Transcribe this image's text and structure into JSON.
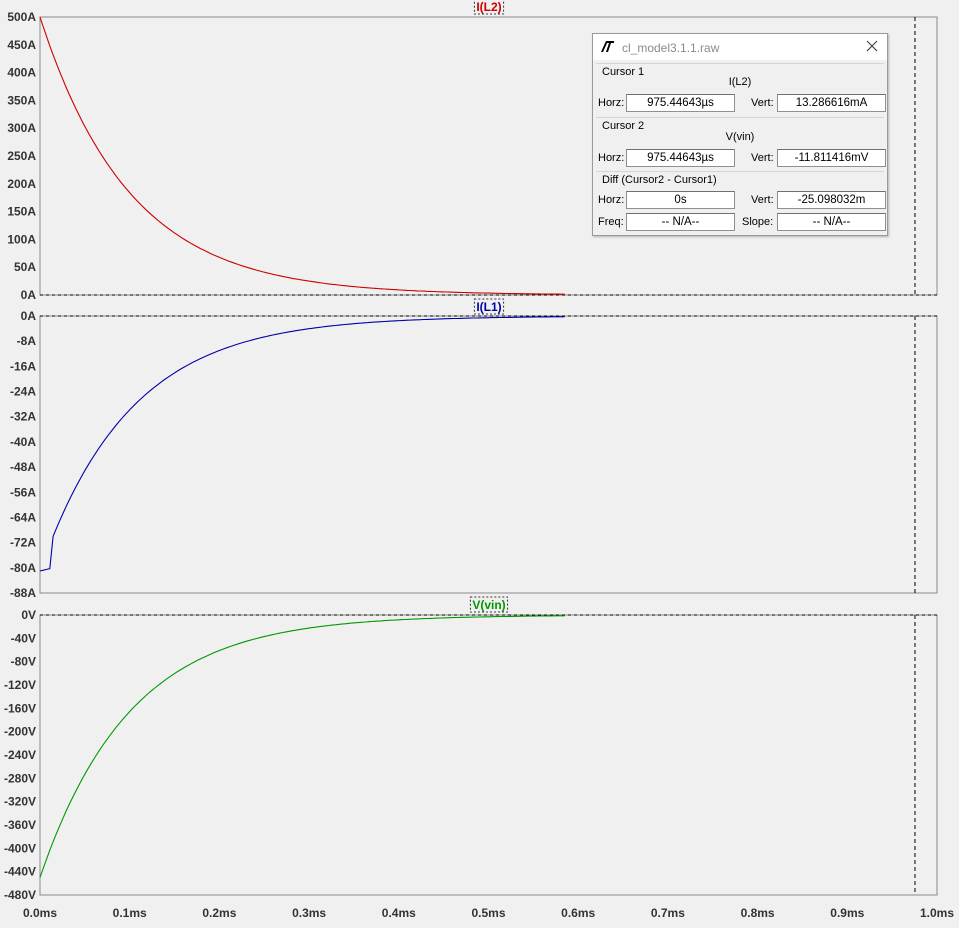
{
  "panes": [
    {
      "trace": "I(L2)",
      "color": "#cc0000",
      "y_ticks": [
        "500A",
        "450A",
        "400A",
        "350A",
        "300A",
        "250A",
        "200A",
        "150A",
        "100A",
        "50A",
        "0A"
      ],
      "y_range": [
        0,
        500
      ],
      "curve": {
        "start": 500,
        "end": 0.0,
        "tau_ms": 0.1
      }
    },
    {
      "trace": "I(L1)",
      "color": "#0000aa",
      "y_ticks": [
        "0A",
        "-8A",
        "-16A",
        "-24A",
        "-32A",
        "-40A",
        "-48A",
        "-56A",
        "-64A",
        "-72A",
        "-80A",
        "-88A"
      ],
      "y_range": [
        -88,
        0
      ],
      "curve": {
        "start": -81,
        "end": 0.0,
        "tau_ms": 0.1
      }
    },
    {
      "trace": "V(vin)",
      "color": "#009900",
      "y_ticks": [
        "0V",
        "-40V",
        "-80V",
        "-120V",
        "-160V",
        "-200V",
        "-240V",
        "-280V",
        "-320V",
        "-360V",
        "-400V",
        "-440V",
        "-480V"
      ],
      "y_range": [
        -480,
        0
      ],
      "curve": {
        "start": -450,
        "end": 0.0,
        "tau_ms": 0.1
      }
    }
  ],
  "x_axis": {
    "ticks": [
      "0.0ms",
      "0.1ms",
      "0.2ms",
      "0.3ms",
      "0.4ms",
      "0.5ms",
      "0.6ms",
      "0.7ms",
      "0.8ms",
      "0.9ms",
      "1.0ms"
    ],
    "range_ms": [
      0,
      1.0
    ],
    "data_end_ms": 0.585
  },
  "cursor_ms": 0.97544643,
  "dialog": {
    "title": "cl_model3.1.1.raw",
    "cursor1": {
      "heading": "Cursor 1",
      "trace": "I(L2)",
      "horz_label": "Horz:",
      "horz": "975.44643µs",
      "vert_label": "Vert:",
      "vert": "13.286616mA"
    },
    "cursor2": {
      "heading": "Cursor 2",
      "trace": "V(vin)",
      "horz_label": "Horz:",
      "horz": "975.44643µs",
      "vert_label": "Vert:",
      "vert": "-11.811416mV"
    },
    "diff": {
      "heading": "Diff (Cursor2 - Cursor1)",
      "horz_label": "Horz:",
      "horz": "0s",
      "vert_label": "Vert:",
      "vert": "-25.098032m",
      "freq_label": "Freq:",
      "freq": "-- N/A--",
      "slope_label": "Slope:",
      "slope": "-- N/A--"
    }
  }
}
